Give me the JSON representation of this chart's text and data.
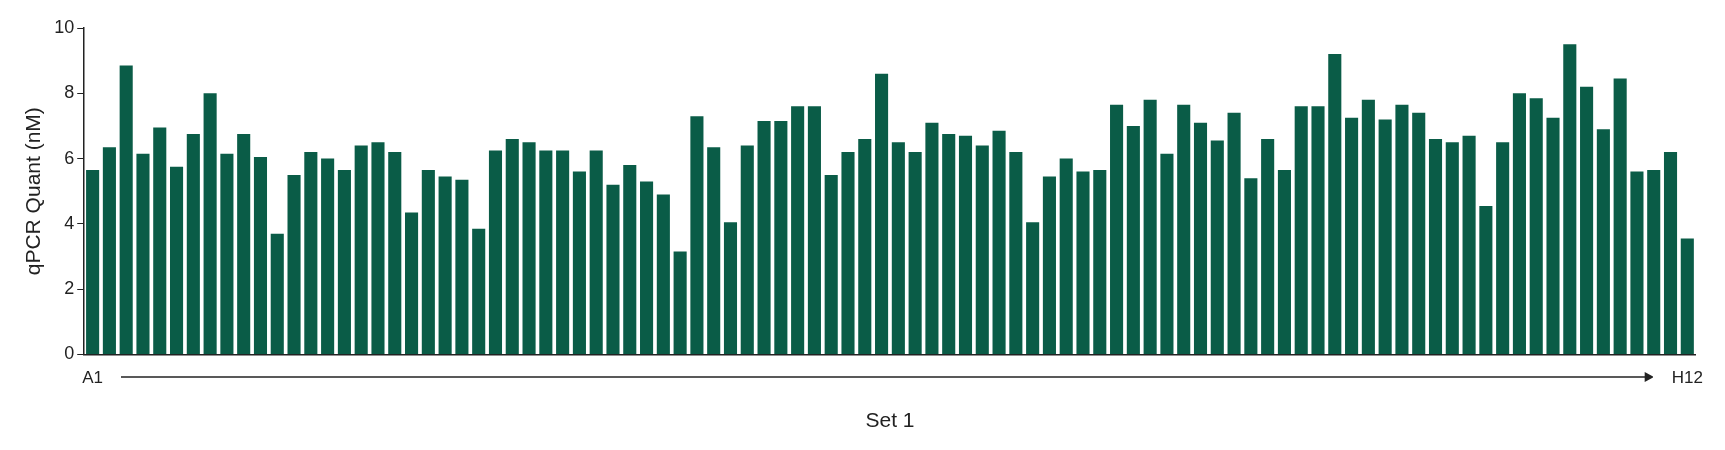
{
  "chart_data": {
    "type": "bar",
    "xlabel": "Set 1",
    "ylabel": "qPCR Quant (nM)",
    "categories": [
      "A1",
      null,
      null,
      null,
      null,
      null,
      null,
      null,
      null,
      null,
      null,
      null,
      null,
      null,
      null,
      null,
      null,
      null,
      null,
      null,
      null,
      null,
      null,
      null,
      null,
      null,
      null,
      null,
      null,
      null,
      null,
      null,
      null,
      null,
      null,
      null,
      null,
      null,
      null,
      null,
      null,
      null,
      null,
      null,
      null,
      null,
      null,
      null,
      null,
      null,
      null,
      null,
      null,
      null,
      null,
      null,
      null,
      null,
      null,
      null,
      null,
      null,
      null,
      null,
      null,
      null,
      null,
      null,
      null,
      null,
      null,
      null,
      null,
      null,
      null,
      null,
      null,
      null,
      null,
      null,
      null,
      null,
      null,
      null,
      null,
      null,
      null,
      null,
      null,
      null,
      null,
      null,
      null,
      null,
      null,
      "H12"
    ],
    "values": [
      5.65,
      6.35,
      8.85,
      6.15,
      6.95,
      5.75,
      6.75,
      8.0,
      6.15,
      6.75,
      6.05,
      3.7,
      5.5,
      6.2,
      6.0,
      5.65,
      6.4,
      6.5,
      6.2,
      4.35,
      5.65,
      5.45,
      5.35,
      3.85,
      6.25,
      6.6,
      6.5,
      6.25,
      6.25,
      5.6,
      6.25,
      5.2,
      5.8,
      5.3,
      4.9,
      3.15,
      7.3,
      6.35,
      4.05,
      6.4,
      7.15,
      7.15,
      7.6,
      7.6,
      5.5,
      6.2,
      6.6,
      8.6,
      6.5,
      6.2,
      7.1,
      6.75,
      6.7,
      6.4,
      6.85,
      6.2,
      4.05,
      5.45,
      6.0,
      5.6,
      5.65,
      7.65,
      7.0,
      7.8,
      6.15,
      7.65,
      7.1,
      6.55,
      7.4,
      5.4,
      6.6,
      5.65,
      7.6,
      7.6,
      9.2,
      7.25,
      7.8,
      7.2,
      7.65,
      7.4,
      6.6,
      6.5,
      6.7,
      4.55,
      6.5,
      8.0,
      7.85,
      7.25,
      9.5,
      8.2,
      6.9,
      8.45,
      5.6,
      5.65,
      6.2,
      3.55
    ],
    "color": "#0a5c47",
    "ylim": [
      0,
      10
    ],
    "yticks": [
      0,
      2,
      4,
      6,
      8,
      10
    ],
    "grid": false,
    "legend": false
  }
}
